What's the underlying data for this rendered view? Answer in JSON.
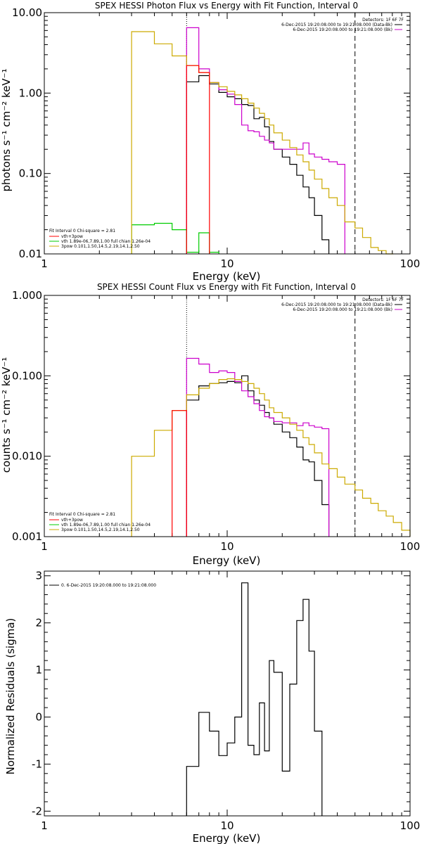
{
  "chart_data": [
    {
      "type": "line",
      "title": "SPEX HESSI Photon Flux vs Energy with Fit Function, Interval 0",
      "xlabel": "Energy (keV)",
      "ylabel": "photons s⁻¹ cm⁻² keV⁻¹",
      "xscale": "log",
      "yscale": "log",
      "xlim": [
        1,
        100
      ],
      "ylim": [
        0.01,
        10
      ],
      "xticks": [
        "1",
        "10",
        "100"
      ],
      "yticks": [
        "0.01",
        "0.10",
        "1.00",
        "10.00"
      ],
      "legend_top": {
        "placement": "top-right",
        "header": "Detectors: 1F 6F 7F",
        "lines": [
          {
            "text": "6-Dec-2015 19:20:08.000 to 19:21:08.000 (Data-Bk)",
            "color": "#000000"
          },
          {
            "text": "6-Dec-2015 19:20:08.000 to 19:21:08.000 (Bk)",
            "color": "#cc00cc"
          }
        ]
      },
      "legend_bottom": {
        "placement": "bottom-left",
        "header": "Fit Interval 0   Chi-square = 2.81",
        "lines": [
          {
            "text": "vth+3pow",
            "color": "#ff0000"
          },
          {
            "text": "vth 1.89e-06,7.89,1.00  full chian 1.26e-04",
            "color": "#00cc00"
          },
          {
            "text": "3pow 0.101,1.50,14.5,2.19,14.1,2.50",
            "color": "#ccaa00"
          }
        ]
      },
      "vlines": [
        {
          "x": 6,
          "style": "dotted"
        },
        {
          "x": 50,
          "style": "dashed"
        }
      ],
      "bin_edges": [
        3,
        4,
        5,
        6,
        7,
        8,
        9,
        10,
        11,
        12,
        13,
        14,
        15,
        16,
        17,
        18,
        20,
        22,
        24,
        26,
        28,
        30,
        33,
        36,
        40,
        44,
        50,
        55,
        61,
        67,
        74,
        81
      ],
      "series": [
        {
          "name": "Data-Bk",
          "color": "#000000",
          "start": 6,
          "values": [
            1.38,
            1.65,
            1.3,
            1.02,
            0.9,
            0.85,
            0.72,
            0.7,
            0.48,
            0.5,
            0.38,
            0.25,
            0.2,
            0.16,
            0.13,
            0.095,
            0.068,
            0.05,
            0.03,
            0.015
          ]
        },
        {
          "name": "Bk",
          "color": "#cc00cc",
          "start": 6,
          "values": [
            6.5,
            2.0,
            1.35,
            1.1,
            0.97,
            0.72,
            0.4,
            0.34,
            0.33,
            0.29,
            0.26,
            0.24,
            0.2,
            0.2,
            0.2,
            0.2,
            0.24,
            0.175,
            0.16,
            0.15,
            0.14,
            0.13
          ]
        },
        {
          "name": "vth",
          "color": "#00cc00",
          "start": 3,
          "values": [
            0.023,
            0.024,
            0.02,
            0.0105,
            0.0183,
            0.0105
          ]
        },
        {
          "name": "3pow",
          "color": "#ccaa00",
          "start": 3,
          "values": [
            5.8,
            4.1,
            2.9,
            2.2,
            1.8,
            1.35,
            1.2,
            1.05,
            0.95,
            0.85,
            0.75,
            0.65,
            0.56,
            0.48,
            0.4,
            0.32,
            0.26,
            0.21,
            0.17,
            0.14,
            0.11,
            0.085,
            0.065,
            0.05,
            0.04,
            0.025,
            0.021,
            0.016,
            0.012,
            0.011,
            0.01
          ]
        },
        {
          "name": "vth+3pow",
          "color": "#ff0000",
          "start": 6,
          "values": [
            2.2,
            1.8
          ]
        }
      ]
    },
    {
      "type": "line",
      "title": "SPEX HESSI Count Flux vs Energy with Fit Function, Interval 0",
      "xlabel": "Energy (keV)",
      "ylabel": "counts s⁻¹ cm⁻² keV⁻¹",
      "xscale": "log",
      "yscale": "log",
      "xlim": [
        1,
        100
      ],
      "ylim": [
        0.001,
        1
      ],
      "xticks": [
        "1",
        "10",
        "100"
      ],
      "yticks": [
        "0.001",
        "0.010",
        "0.100",
        "1.000"
      ],
      "legend_top": {
        "placement": "top-right",
        "header": "Detectors: 1F 6F 7F",
        "lines": [
          {
            "text": "6-Dec-2015 19:20:08.000 to 19:21:08.000 (Data-Bk)",
            "color": "#000000"
          },
          {
            "text": "6-Dec-2015 19:20:08.000 to 19:21:08.000 (Bk)",
            "color": "#cc00cc"
          }
        ]
      },
      "legend_bottom": {
        "placement": "bottom-left",
        "header": "Fit Interval 0   Chi-square = 2.81",
        "lines": [
          {
            "text": "vth+3pow",
            "color": "#ff0000"
          },
          {
            "text": "vth 1.89e-06,7.89,1.00  full chian 1.26e-04",
            "color": "#00cc00"
          },
          {
            "text": "3pow 0.101,1.50,14.5,2.19,14.1,2.50",
            "color": "#ccaa00"
          }
        ]
      },
      "vlines": [
        {
          "x": 6,
          "style": "dotted"
        },
        {
          "x": 50,
          "style": "dashed"
        }
      ],
      "bin_edges": [
        3,
        4,
        5,
        6,
        7,
        8,
        9,
        10,
        11,
        12,
        13,
        14,
        15,
        16,
        17,
        18,
        20,
        22,
        24,
        26,
        28,
        30,
        33,
        36,
        40,
        44,
        50,
        55,
        61,
        67,
        74,
        81,
        90,
        100
      ],
      "series": [
        {
          "name": "Data-Bk",
          "color": "#000000",
          "start": 6,
          "values": [
            0.05,
            0.075,
            0.08,
            0.082,
            0.085,
            0.082,
            0.1,
            0.065,
            0.05,
            0.043,
            0.035,
            0.03,
            0.025,
            0.02,
            0.017,
            0.013,
            0.009,
            0.0085,
            0.005,
            0.0025
          ]
        },
        {
          "name": "Bk",
          "color": "#cc00cc",
          "start": 6,
          "values": [
            0.165,
            0.14,
            0.11,
            0.115,
            0.11,
            0.085,
            0.065,
            0.055,
            0.045,
            0.037,
            0.031,
            0.03,
            0.027,
            0.026,
            0.026,
            0.024,
            0.026,
            0.024,
            0.023,
            0.022
          ]
        },
        {
          "name": "vth",
          "color": "#00cc00",
          "start": 3,
          "values": []
        },
        {
          "name": "3pow",
          "color": "#ccaa00",
          "start": 3,
          "values": [
            0.01,
            0.021,
            0.037,
            0.058,
            0.07,
            0.08,
            0.09,
            0.092,
            0.09,
            0.085,
            0.08,
            0.07,
            0.06,
            0.05,
            0.04,
            0.035,
            0.03,
            0.025,
            0.021,
            0.017,
            0.014,
            0.011,
            0.008,
            0.007,
            0.0055,
            0.0045,
            0.0038,
            0.003,
            0.0026,
            0.0021,
            0.0018,
            0.0015,
            0.0012
          ]
        },
        {
          "name": "vth+3pow",
          "color": "#ff0000",
          "start": 5,
          "values": [
            0.037
          ]
        }
      ]
    },
    {
      "type": "line",
      "title": "",
      "xlabel": "Energy (keV)",
      "ylabel": "Normalized Residuals (sigma)",
      "xscale": "log",
      "yscale": "linear",
      "xlim": [
        1,
        100
      ],
      "ylim": [
        -2.1,
        3.1
      ],
      "xticks": [
        "1",
        "10",
        "100"
      ],
      "yticks": [
        "-2",
        "-1",
        "0",
        "1",
        "2",
        "3"
      ],
      "legend_top": {
        "placement": "top-left",
        "header": "",
        "lines": [
          {
            "text": "0. 6-Dec-2015 19:20:08.000 to 19:21:08.000",
            "color": "#000000"
          }
        ]
      },
      "bin_edges": [
        6,
        7,
        8,
        9,
        10,
        11,
        12,
        13,
        14,
        15,
        16,
        17,
        18,
        20,
        22,
        24,
        26,
        28,
        30,
        33,
        36,
        40,
        44,
        50
      ],
      "series": [
        {
          "name": "residuals",
          "color": "#000000",
          "start": 6,
          "values": [
            -1.05,
            0.1,
            -0.3,
            -0.82,
            -0.55,
            0.0,
            2.85,
            -0.6,
            -0.8,
            0.3,
            -0.72,
            1.2,
            0.95,
            -1.15,
            0.7,
            2.05,
            2.5,
            1.4,
            -0.3
          ]
        }
      ]
    }
  ]
}
